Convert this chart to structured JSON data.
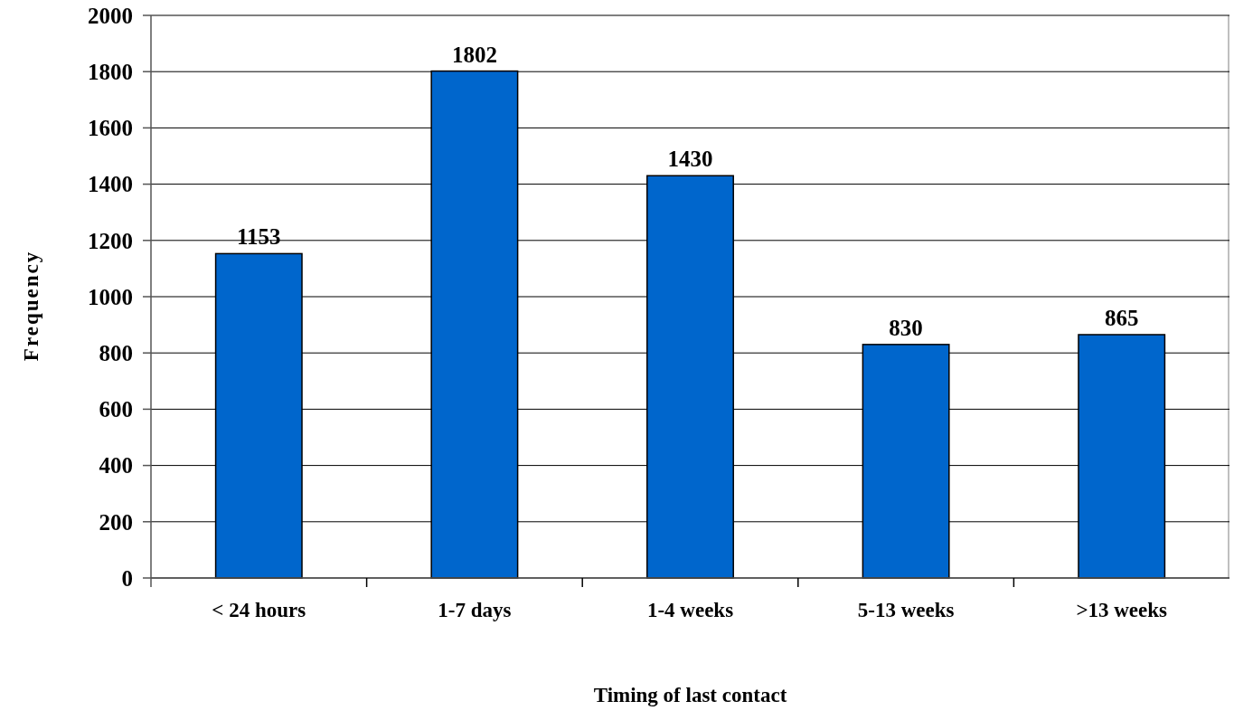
{
  "chart_data": {
    "type": "bar",
    "categories": [
      "< 24 hours",
      "1-7 days",
      "1-4 weeks",
      "5-13 weeks",
      ">13 weeks"
    ],
    "values": [
      1153,
      1802,
      1430,
      830,
      865
    ],
    "color": "#0066cc",
    "xlabel": "Timing of last contact",
    "ylabel": "Frequency",
    "ylim": [
      0,
      2000
    ],
    "yticks": [
      0,
      200,
      400,
      600,
      800,
      1000,
      1200,
      1400,
      1600,
      1800,
      2000
    ],
    "grid": "y",
    "data_labels": true
  }
}
